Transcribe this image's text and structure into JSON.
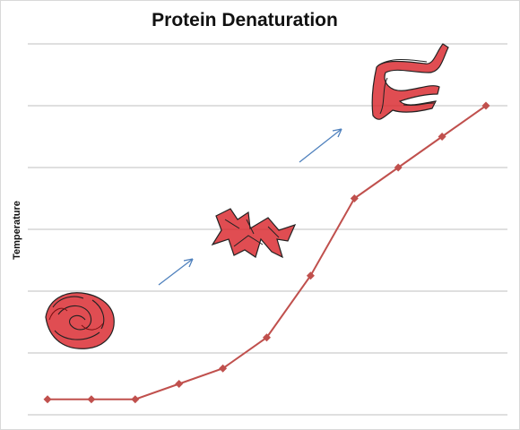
{
  "chart_data": {
    "type": "line",
    "title": "Protein Denaturation",
    "xlabel": "",
    "ylabel": "Temperature",
    "x": [
      1,
      2,
      3,
      4,
      5,
      6,
      7,
      8,
      9,
      10,
      11
    ],
    "series": [
      {
        "values": [
          0.5,
          0.5,
          0.5,
          1,
          1.5,
          2.5,
          4.5,
          7,
          8,
          9,
          10
        ]
      }
    ],
    "ylim": [
      0,
      12
    ],
    "grid": true,
    "legend": "none",
    "colors": {
      "line": "#c0504d",
      "grid": "#bfbfbf",
      "arrow": "#4f81bd",
      "protein_fill": "#d9262c",
      "protein_outline": "#222222"
    }
  }
}
